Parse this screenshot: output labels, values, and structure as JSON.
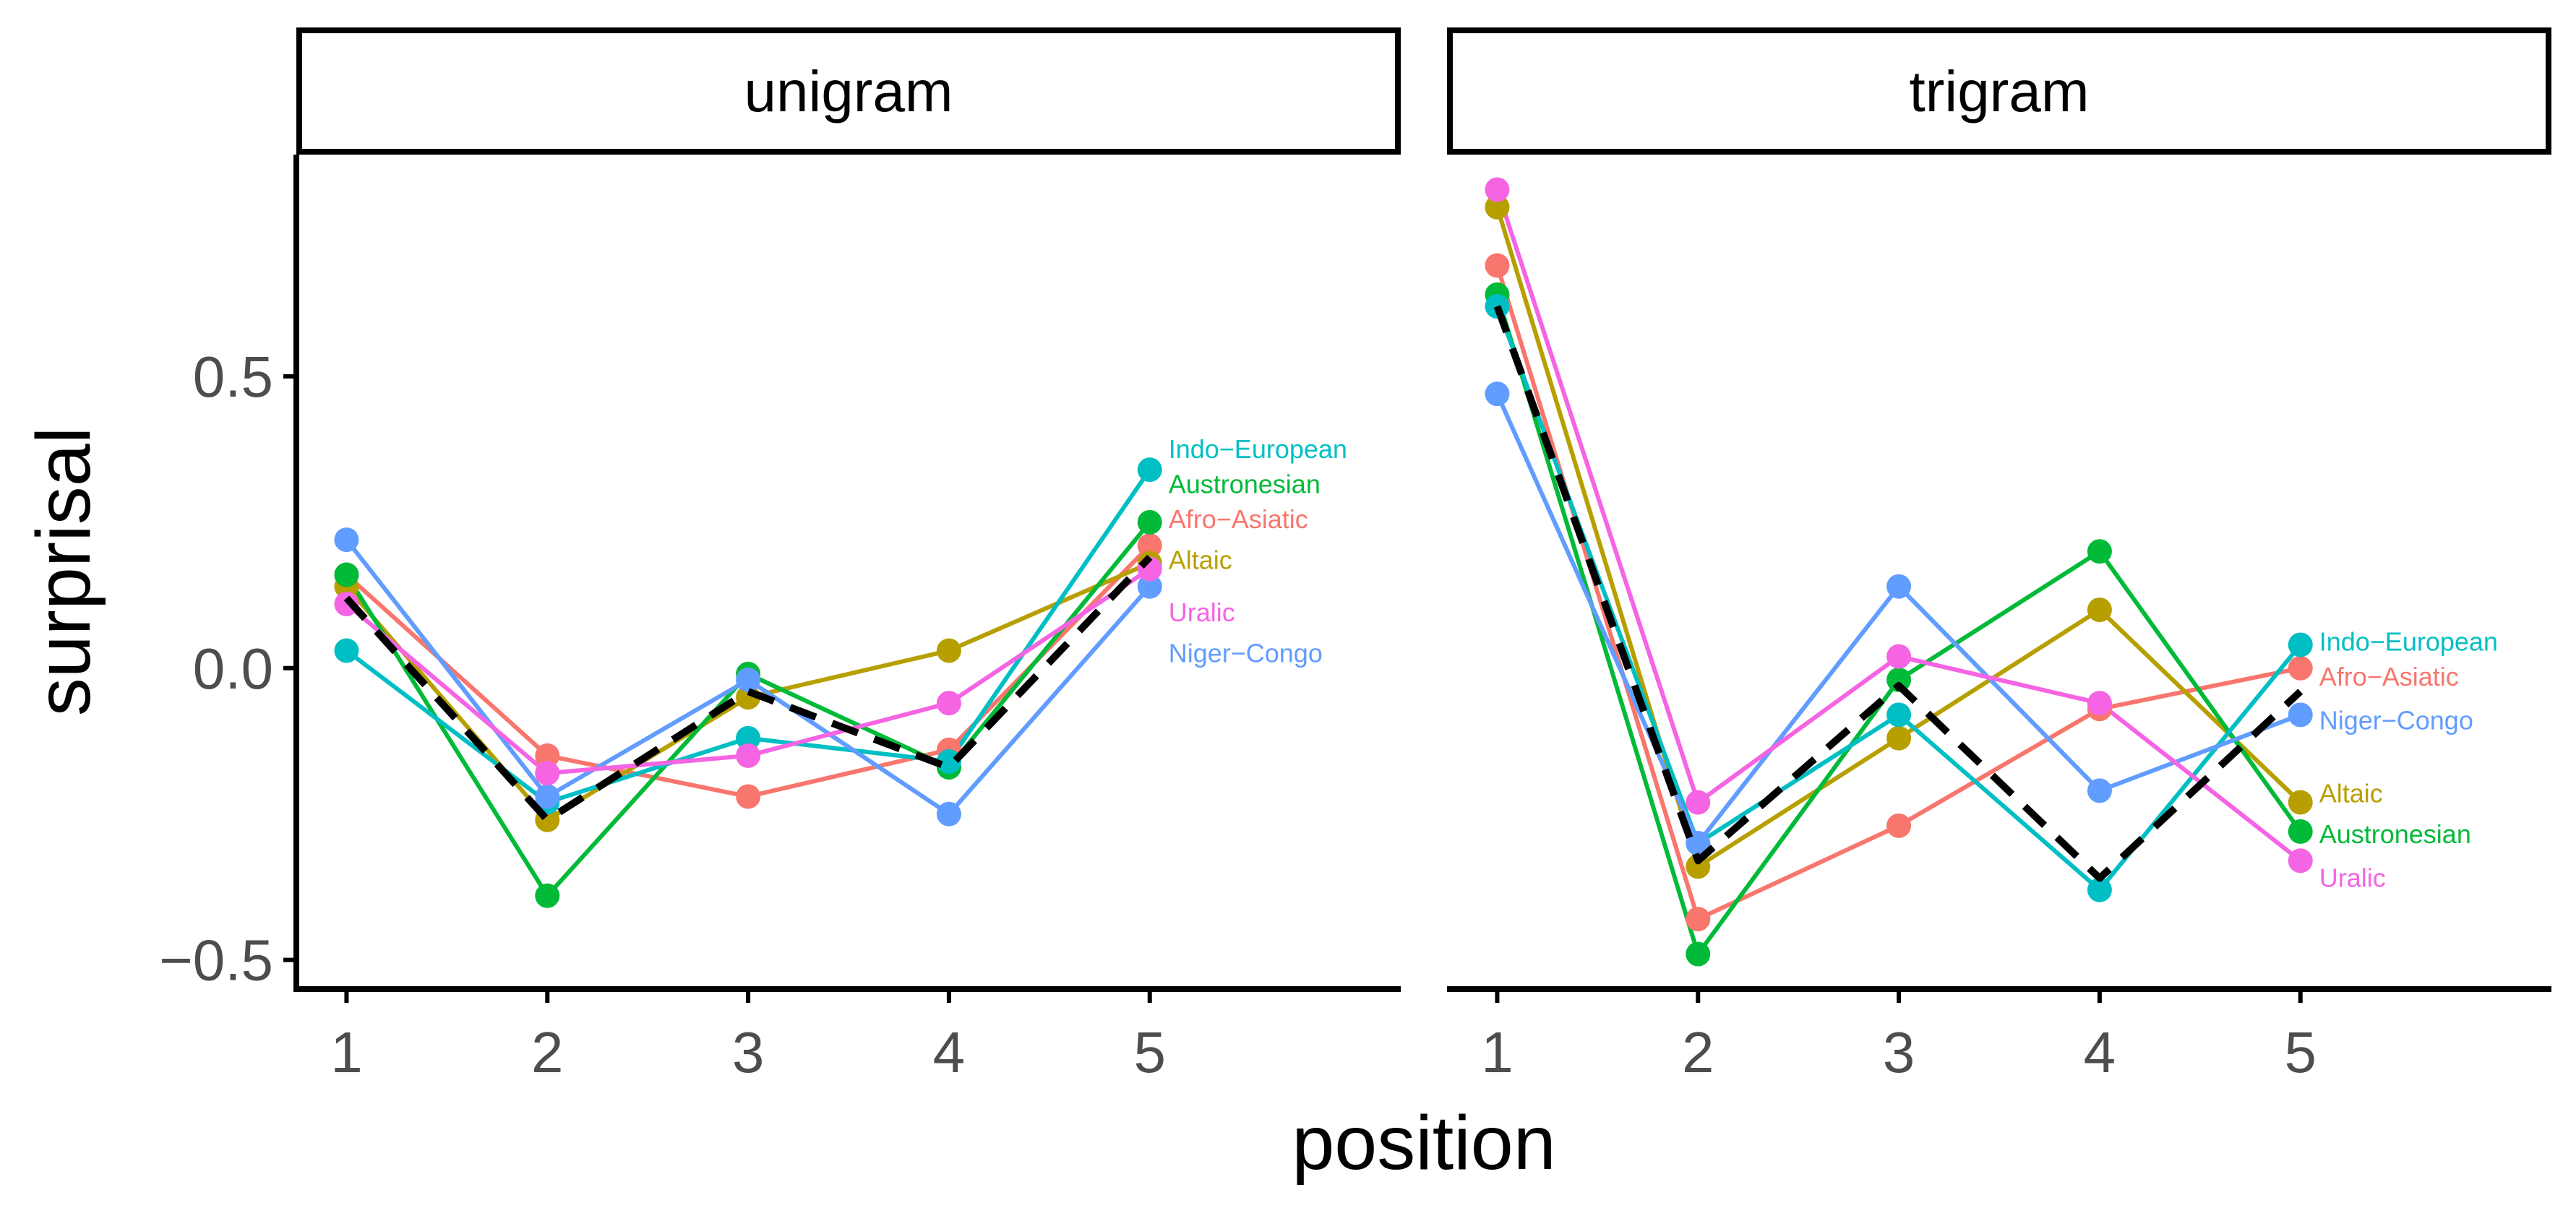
{
  "chart_data": {
    "type": "line",
    "xlabel": "position",
    "ylabel": "surprisal",
    "x": [
      1,
      2,
      3,
      4,
      5
    ],
    "xlim": [
      0.75,
      6.25
    ],
    "ylim": [
      -0.55,
      0.88
    ],
    "yticks": [
      -0.5,
      0.0,
      0.5
    ],
    "ytick_labels": [
      "−0.5",
      "0.0",
      "0.5"
    ],
    "xtick_labels": [
      "1",
      "2",
      "3",
      "4",
      "5"
    ],
    "grid": false,
    "legend": "direct labels at right end of each series",
    "colors": {
      "Afro-Asiatic": "#F8766D",
      "Altaic": "#B79F00",
      "Austronesian": "#00BA38",
      "Indo-European": "#00BFC4",
      "Niger-Congo": "#619CFF",
      "Uralic": "#F564E3",
      "mean": "#000000"
    },
    "panels": [
      {
        "title": "unigram",
        "series": [
          {
            "name": "Afro-Asiatic",
            "values": [
              0.16,
              -0.15,
              -0.22,
              -0.14,
              0.21
            ]
          },
          {
            "name": "Altaic",
            "values": [
              0.14,
              -0.26,
              -0.05,
              0.03,
              0.18
            ]
          },
          {
            "name": "Austronesian",
            "values": [
              0.16,
              -0.39,
              -0.01,
              -0.17,
              0.25
            ]
          },
          {
            "name": "Indo-European",
            "values": [
              0.03,
              -0.23,
              -0.12,
              -0.16,
              0.34
            ]
          },
          {
            "name": "Niger-Congo",
            "values": [
              0.22,
              -0.22,
              -0.02,
              -0.25,
              0.14
            ]
          },
          {
            "name": "Uralic",
            "values": [
              0.11,
              -0.18,
              -0.15,
              -0.06,
              0.17
            ]
          }
        ],
        "mean": {
          "name": "mean",
          "values": [
            0.12,
            -0.26,
            -0.04,
            -0.17,
            0.19
          ]
        },
        "series_labels": [
          {
            "text": "Indo−European",
            "series": "Indo-European",
            "y": 0.375
          },
          {
            "text": "Austronesian",
            "series": "Austronesian",
            "y": 0.315
          },
          {
            "text": "Afro−Asiatic",
            "series": "Afro-Asiatic",
            "y": 0.255
          },
          {
            "text": "Altaic",
            "series": "Altaic",
            "y": 0.185
          },
          {
            "text": "Uralic",
            "series": "Uralic",
            "y": 0.095
          },
          {
            "text": "Niger−Congo",
            "series": "Niger-Congo",
            "y": 0.025
          }
        ]
      },
      {
        "title": "trigram",
        "series": [
          {
            "name": "Afro-Asiatic",
            "values": [
              0.69,
              -0.43,
              -0.27,
              -0.07,
              0.0
            ]
          },
          {
            "name": "Altaic",
            "values": [
              0.79,
              -0.34,
              -0.12,
              0.1,
              -0.23
            ]
          },
          {
            "name": "Austronesian",
            "values": [
              0.64,
              -0.49,
              -0.02,
              0.2,
              -0.28
            ]
          },
          {
            "name": "Indo-European",
            "values": [
              0.62,
              -0.3,
              -0.08,
              -0.38,
              0.04
            ]
          },
          {
            "name": "Niger-Congo",
            "values": [
              0.47,
              -0.3,
              0.14,
              -0.21,
              -0.08
            ]
          },
          {
            "name": "Uralic",
            "values": [
              0.82,
              -0.23,
              0.02,
              -0.06,
              -0.33
            ]
          }
        ],
        "mean": {
          "name": "mean",
          "values": [
            0.62,
            -0.33,
            -0.03,
            -0.36,
            -0.04
          ]
        },
        "series_labels": [
          {
            "text": "Indo−European",
            "series": "Indo-European",
            "y": 0.045
          },
          {
            "text": "Afro−Asiatic",
            "series": "Afro-Asiatic",
            "y": -0.015
          },
          {
            "text": "Niger−Congo",
            "series": "Niger-Congo",
            "y": -0.09
          },
          {
            "text": "Altaic",
            "series": "Altaic",
            "y": -0.215
          },
          {
            "text": "Austronesian",
            "series": "Austronesian",
            "y": -0.285
          },
          {
            "text": "Uralic",
            "series": "Uralic",
            "y": -0.36
          }
        ]
      }
    ]
  }
}
